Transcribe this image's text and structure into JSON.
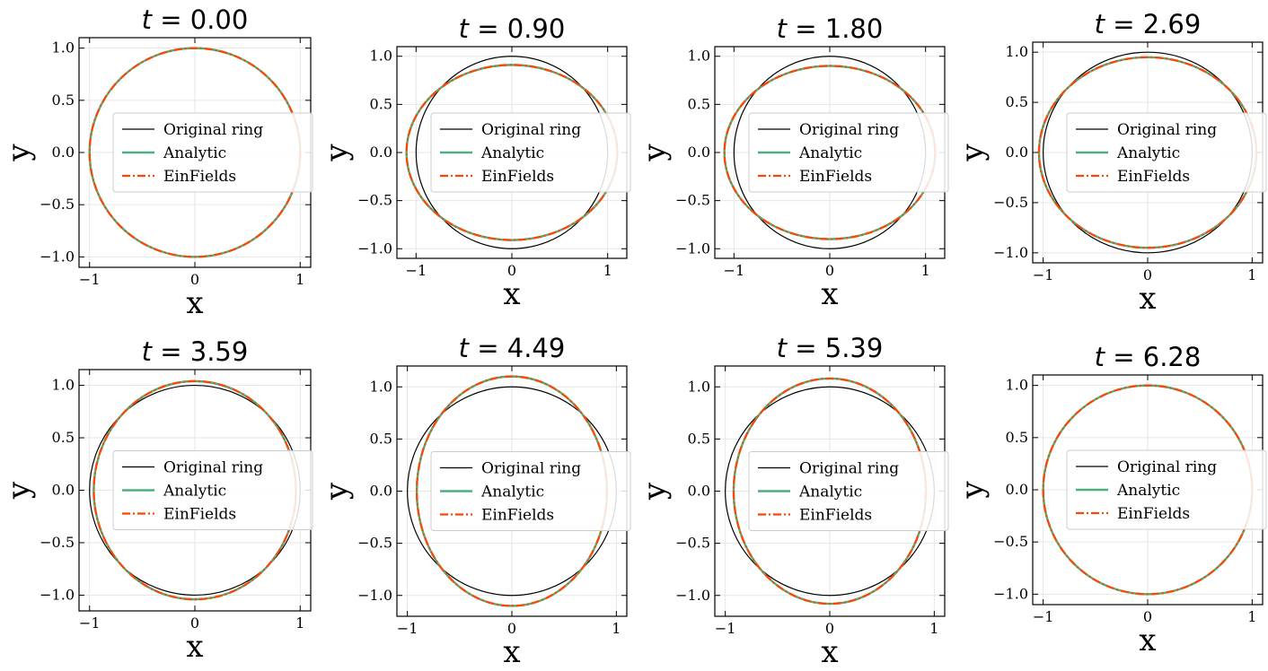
{
  "figure": {
    "legend": {
      "placement": "center",
      "entries": [
        {
          "label": "Original ring",
          "color": "#000000",
          "style": "solid"
        },
        {
          "label": "Analytic",
          "color": "#4caf7d",
          "style": "solid"
        },
        {
          "label": "EinFields",
          "color": "#ff4500",
          "style": "dashdot"
        }
      ]
    }
  },
  "chart_data": [
    {
      "type": "line",
      "title_var": "t",
      "title_value": "0.00",
      "xlabel": "x",
      "ylabel": "y",
      "xlim": [
        -1.1,
        1.1
      ],
      "ylim": [
        -1.1,
        1.1
      ],
      "xticks": [
        "−1",
        "0",
        "1"
      ],
      "yticks": [
        "1.0",
        "0.5",
        "0.0",
        "−0.5",
        "−1.0"
      ],
      "grid": true,
      "legend": "center",
      "series": [
        {
          "name": "Original ring",
          "shape": "circle",
          "rx": 1.0,
          "ry": 1.0
        },
        {
          "name": "Analytic",
          "shape": "ellipse",
          "rx": 1.0,
          "ry": 1.0
        },
        {
          "name": "EinFields",
          "shape": "ellipse",
          "rx": 1.0,
          "ry": 1.0
        }
      ]
    },
    {
      "type": "line",
      "title_var": "t",
      "title_value": "0.90",
      "xlabel": "x",
      "ylabel": "y",
      "xlim": [
        -1.2,
        1.2
      ],
      "ylim": [
        -1.1,
        1.1
      ],
      "xticks": [
        "−1",
        "0",
        "1"
      ],
      "yticks": [
        "1.0",
        "0.5",
        "0.0",
        "−0.5",
        "−1.0"
      ],
      "grid": true,
      "legend": "center",
      "series": [
        {
          "name": "Original ring",
          "shape": "circle",
          "rx": 1.0,
          "ry": 1.0
        },
        {
          "name": "Analytic",
          "shape": "ellipse",
          "rx": 1.1,
          "ry": 0.91
        },
        {
          "name": "EinFields",
          "shape": "ellipse",
          "rx": 1.1,
          "ry": 0.91
        }
      ]
    },
    {
      "type": "line",
      "title_var": "t",
      "title_value": "1.80",
      "xlabel": "x",
      "ylabel": "y",
      "xlim": [
        -1.2,
        1.2
      ],
      "ylim": [
        -1.1,
        1.1
      ],
      "xticks": [
        "−1",
        "0",
        "1"
      ],
      "yticks": [
        "1.0",
        "0.5",
        "0.0",
        "−0.5",
        "−1.0"
      ],
      "grid": true,
      "legend": "center",
      "series": [
        {
          "name": "Original ring",
          "shape": "circle",
          "rx": 1.0,
          "ry": 1.0
        },
        {
          "name": "Analytic",
          "shape": "ellipse",
          "rx": 1.1,
          "ry": 0.9
        },
        {
          "name": "EinFields",
          "shape": "ellipse",
          "rx": 1.1,
          "ry": 0.9
        }
      ]
    },
    {
      "type": "line",
      "title_var": "t",
      "title_value": "2.69",
      "xlabel": "x",
      "ylabel": "y",
      "xlim": [
        -1.1,
        1.1
      ],
      "ylim": [
        -1.1,
        1.1
      ],
      "xticks": [
        "−1",
        "0",
        "1"
      ],
      "yticks": [
        "1.0",
        "0.5",
        "0.0",
        "−0.5",
        "−1.0"
      ],
      "grid": true,
      "legend": "center",
      "series": [
        {
          "name": "Original ring",
          "shape": "circle",
          "rx": 1.0,
          "ry": 1.0
        },
        {
          "name": "Analytic",
          "shape": "ellipse",
          "rx": 1.04,
          "ry": 0.95
        },
        {
          "name": "EinFields",
          "shape": "ellipse",
          "rx": 1.04,
          "ry": 0.95
        }
      ]
    },
    {
      "type": "line",
      "title_var": "t",
      "title_value": "3.59",
      "xlabel": "x",
      "ylabel": "y",
      "xlim": [
        -1.1,
        1.1
      ],
      "ylim": [
        -1.15,
        1.15
      ],
      "xticks": [
        "−1",
        "0",
        "1"
      ],
      "yticks": [
        "1.0",
        "0.5",
        "0.0",
        "−0.5",
        "−1.0"
      ],
      "grid": true,
      "legend": "center",
      "series": [
        {
          "name": "Original ring",
          "shape": "circle",
          "rx": 1.0,
          "ry": 1.0
        },
        {
          "name": "Analytic",
          "shape": "ellipse",
          "rx": 0.96,
          "ry": 1.04
        },
        {
          "name": "EinFields",
          "shape": "ellipse",
          "rx": 0.96,
          "ry": 1.04
        }
      ]
    },
    {
      "type": "line",
      "title_var": "t",
      "title_value": "4.49",
      "xlabel": "x",
      "ylabel": "y",
      "xlim": [
        -1.1,
        1.1
      ],
      "ylim": [
        -1.2,
        1.2
      ],
      "xticks": [
        "−1",
        "0",
        "1"
      ],
      "yticks": [
        "1.0",
        "0.5",
        "0.0",
        "−0.5",
        "−1.0"
      ],
      "grid": true,
      "legend": "center",
      "series": [
        {
          "name": "Original ring",
          "shape": "circle",
          "rx": 1.0,
          "ry": 1.0
        },
        {
          "name": "Analytic",
          "shape": "ellipse",
          "rx": 0.91,
          "ry": 1.1
        },
        {
          "name": "EinFields",
          "shape": "ellipse",
          "rx": 0.91,
          "ry": 1.1
        }
      ]
    },
    {
      "type": "line",
      "title_var": "t",
      "title_value": "5.39",
      "xlabel": "x",
      "ylabel": "y",
      "xlim": [
        -1.1,
        1.1
      ],
      "ylim": [
        -1.2,
        1.2
      ],
      "xticks": [
        "−1",
        "0",
        "1"
      ],
      "yticks": [
        "1.0",
        "0.5",
        "0.0",
        "−0.5",
        "−1.0"
      ],
      "grid": true,
      "legend": "center",
      "series": [
        {
          "name": "Original ring",
          "shape": "circle",
          "rx": 1.0,
          "ry": 1.0
        },
        {
          "name": "Analytic",
          "shape": "ellipse",
          "rx": 0.92,
          "ry": 1.08
        },
        {
          "name": "EinFields",
          "shape": "ellipse",
          "rx": 0.92,
          "ry": 1.08
        }
      ]
    },
    {
      "type": "line",
      "title_var": "t",
      "title_value": "6.28",
      "xlabel": "x",
      "ylabel": "y",
      "xlim": [
        -1.1,
        1.1
      ],
      "ylim": [
        -1.1,
        1.1
      ],
      "xticks": [
        "−1",
        "0",
        "1"
      ],
      "yticks": [
        "1.0",
        "0.5",
        "0.0",
        "−0.5",
        "−1.0"
      ],
      "grid": true,
      "legend": "center",
      "series": [
        {
          "name": "Original ring",
          "shape": "circle",
          "rx": 1.0,
          "ry": 1.0
        },
        {
          "name": "Analytic",
          "shape": "ellipse",
          "rx": 1.0,
          "ry": 1.0
        },
        {
          "name": "EinFields",
          "shape": "ellipse",
          "rx": 1.0,
          "ry": 1.0
        }
      ]
    }
  ]
}
